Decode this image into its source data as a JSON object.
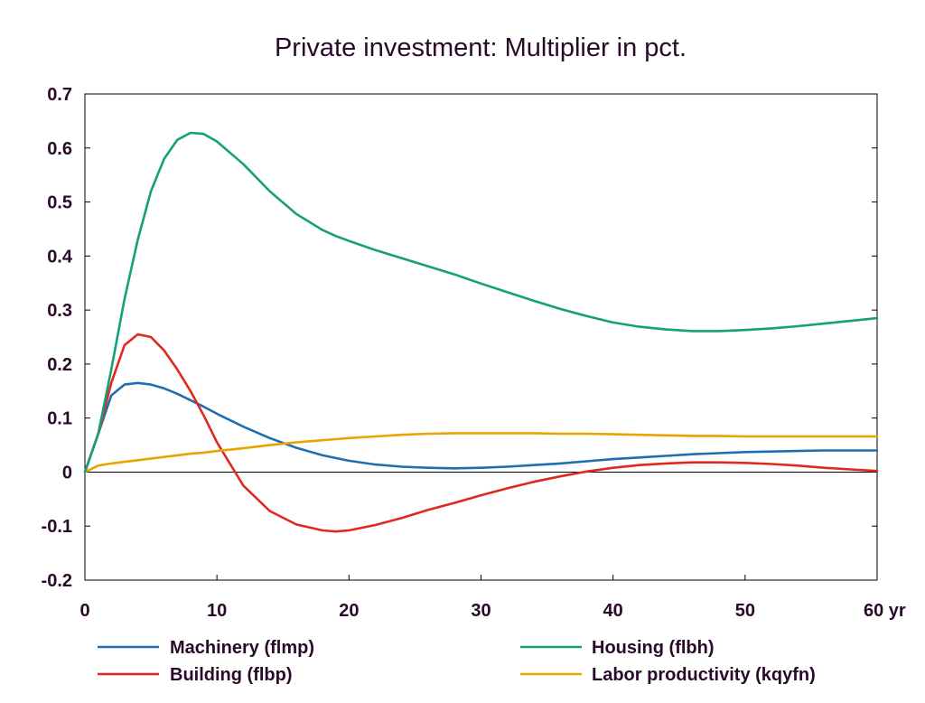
{
  "chart_data": {
    "type": "line",
    "title": "Private investment: Multiplier in pct.",
    "xlabel": "",
    "ylabel": "",
    "x_unit_label": "yr",
    "xlim": [
      0,
      60
    ],
    "ylim": [
      -0.2,
      0.7
    ],
    "xticks": [
      0,
      10,
      20,
      30,
      40,
      50,
      60
    ],
    "xtick_labels": [
      "0",
      "10",
      "20",
      "30",
      "40",
      "50",
      "60 yr"
    ],
    "yticks": [
      -0.2,
      -0.1,
      0,
      0.1,
      0.2,
      0.3,
      0.4,
      0.5,
      0.6,
      0.7
    ],
    "ytick_labels": [
      "-0.2",
      "-0.1",
      "0",
      "0.1",
      "0.2",
      "0.3",
      "0.4",
      "0.5",
      "0.6",
      "0.7"
    ],
    "grid": false,
    "legend_position": "bottom",
    "x": [
      0,
      1,
      2,
      3,
      4,
      5,
      6,
      7,
      8,
      9,
      10,
      12,
      14,
      16,
      18,
      19,
      20,
      22,
      24,
      26,
      28,
      30,
      32,
      34,
      36,
      38,
      40,
      42,
      44,
      46,
      48,
      50,
      52,
      54,
      56,
      58,
      60
    ],
    "series": [
      {
        "name": "Machinery (flmp)",
        "color": "#1f6fb0",
        "values": [
          0,
          0.07,
          0.142,
          0.162,
          0.165,
          0.162,
          0.155,
          0.145,
          0.133,
          0.121,
          0.108,
          0.084,
          0.063,
          0.045,
          0.031,
          0.026,
          0.021,
          0.014,
          0.01,
          0.008,
          0.007,
          0.008,
          0.01,
          0.013,
          0.016,
          0.02,
          0.024,
          0.027,
          0.03,
          0.033,
          0.035,
          0.037,
          0.038,
          0.039,
          0.04,
          0.04,
          0.04
        ]
      },
      {
        "name": "Building (flbp)",
        "color": "#e0281e",
        "values": [
          0,
          0.07,
          0.165,
          0.235,
          0.255,
          0.25,
          0.225,
          0.19,
          0.15,
          0.105,
          0.055,
          -0.025,
          -0.072,
          -0.097,
          -0.108,
          -0.11,
          -0.108,
          -0.098,
          -0.085,
          -0.07,
          -0.057,
          -0.043,
          -0.03,
          -0.018,
          -0.008,
          0.001,
          0.008,
          0.013,
          0.016,
          0.018,
          0.018,
          0.017,
          0.015,
          0.012,
          0.008,
          0.005,
          0.002
        ]
      },
      {
        "name": "Housing (flbh)",
        "color": "#13a07a",
        "values": [
          0,
          0.07,
          0.19,
          0.32,
          0.43,
          0.52,
          0.58,
          0.615,
          0.628,
          0.626,
          0.612,
          0.57,
          0.52,
          0.478,
          0.448,
          0.437,
          0.428,
          0.411,
          0.396,
          0.381,
          0.366,
          0.349,
          0.333,
          0.317,
          0.302,
          0.289,
          0.277,
          0.269,
          0.264,
          0.261,
          0.261,
          0.263,
          0.266,
          0.27,
          0.275,
          0.28,
          0.285
        ]
      },
      {
        "name": "Labor productivity (kqyfn)",
        "color": "#e8a400",
        "values": [
          0,
          0.012,
          0.016,
          0.019,
          0.022,
          0.025,
          0.028,
          0.031,
          0.034,
          0.036,
          0.039,
          0.044,
          0.05,
          0.055,
          0.059,
          0.061,
          0.063,
          0.066,
          0.069,
          0.071,
          0.072,
          0.072,
          0.072,
          0.072,
          0.071,
          0.071,
          0.07,
          0.069,
          0.068,
          0.067,
          0.067,
          0.066,
          0.066,
          0.066,
          0.066,
          0.066,
          0.066
        ]
      }
    ]
  }
}
